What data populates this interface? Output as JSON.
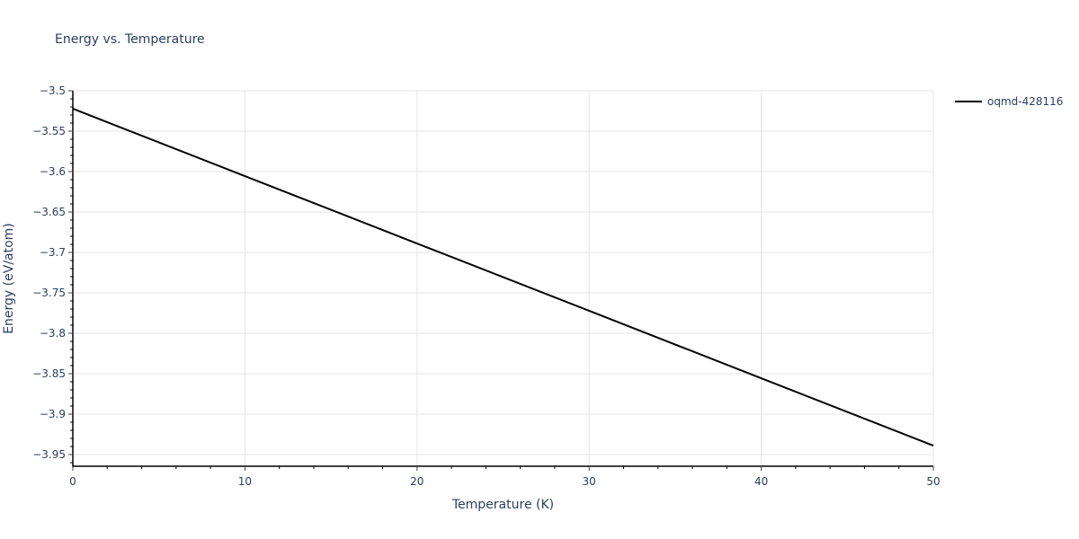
{
  "chart_data": {
    "type": "line",
    "title": "Energy vs. Temperature",
    "xlabel": "Temperature (K)",
    "ylabel": "Energy (eV/atom)",
    "xlim": [
      0,
      50
    ],
    "ylim": [
      -3.961,
      -3.5
    ],
    "x_ticks": [
      0,
      10,
      20,
      30,
      40,
      50
    ],
    "y_ticks": [
      -3.5,
      -3.55,
      -3.6,
      -3.65,
      -3.7,
      -3.75,
      -3.8,
      -3.85,
      -3.9,
      -3.95
    ],
    "y_tick_labels": [
      "−3.5",
      "−3.55",
      "−3.6",
      "−3.65",
      "−3.7",
      "−3.75",
      "−3.8",
      "−3.85",
      "−3.9",
      "−3.95"
    ],
    "grid": true,
    "legend_position": "right-top",
    "series": [
      {
        "name": "oqmd-428116",
        "color": "#000000",
        "x": [
          0,
          10,
          20,
          30,
          40,
          50
        ],
        "y": [
          -3.5222,
          -3.6056,
          -3.6889,
          -3.7722,
          -3.8556,
          -3.9389
        ]
      }
    ]
  },
  "ui": {
    "title": "Energy vs. Temperature",
    "xlabel": "Temperature (K)",
    "ylabel": "Energy (eV/atom)",
    "legend_label": "oqmd-428116"
  }
}
